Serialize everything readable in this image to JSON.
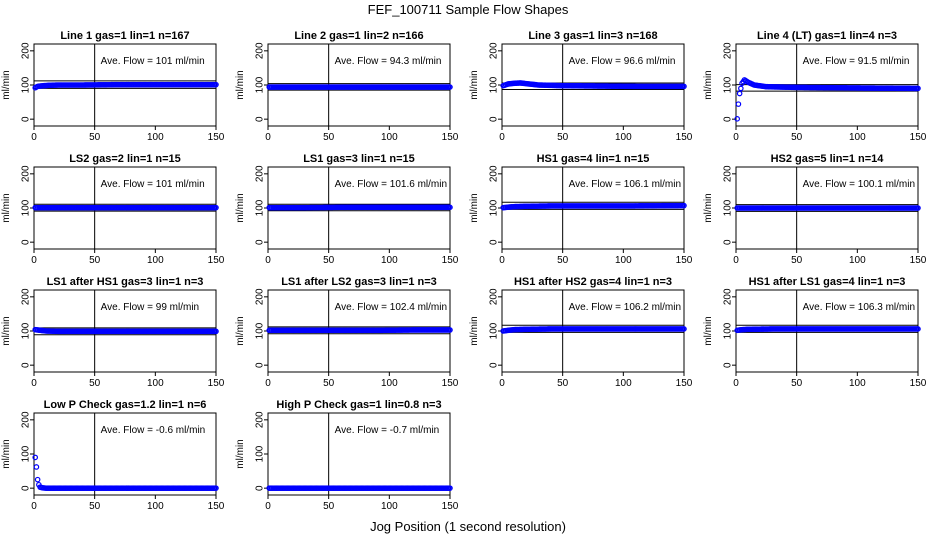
{
  "figure": {
    "title": "FEF_100711  Sample Flow Shapes",
    "xlabel": "Jog Position (1 second resolution)"
  },
  "chart_data": [
    {
      "type": "scatter",
      "title": "Line 1 gas=1 lin=1 n=167",
      "ylabel": "ml/min",
      "annotation": "Ave. Flow =  101  ml/min",
      "mean": 101,
      "hlines": [
        90,
        112
      ],
      "vline": 50,
      "xlim": [
        0,
        150
      ],
      "ylim": [
        -20,
        220
      ],
      "xticks": [
        0,
        50,
        100,
        150
      ],
      "yticks": [
        0,
        100,
        200
      ],
      "series": [
        {
          "name": "",
          "color": "#0000ff",
          "points": [
            [
              1,
              92
            ],
            [
              3,
              96
            ],
            [
              5,
              97
            ],
            [
              8,
              98
            ],
            [
              12,
              99
            ],
            [
              20,
              100
            ],
            [
              40,
              100
            ],
            [
              70,
              101
            ],
            [
              100,
              101
            ],
            [
              130,
              101
            ],
            [
              150,
              101
            ]
          ]
        }
      ]
    },
    {
      "type": "scatter",
      "title": "Line 2 gas=1 lin=2 n=166",
      "ylabel": "ml/min",
      "annotation": "Ave. Flow =  94.3  ml/min",
      "mean": 94.3,
      "hlines": [
        85,
        104
      ],
      "vline": 50,
      "xlim": [
        0,
        150
      ],
      "ylim": [
        -20,
        220
      ],
      "xticks": [
        0,
        50,
        100,
        150
      ],
      "yticks": [
        0,
        100,
        200
      ],
      "series": [
        {
          "name": "",
          "color": "#0000ff",
          "points": [
            [
              1,
              94
            ],
            [
              20,
              94
            ],
            [
              50,
              94
            ],
            [
              80,
              94
            ],
            [
              110,
              94
            ],
            [
              150,
              94
            ]
          ]
        }
      ]
    },
    {
      "type": "scatter",
      "title": "Line 3 gas=1 lin=3 n=168",
      "ylabel": "ml/min",
      "annotation": "Ave. Flow =  96.6  ml/min",
      "mean": 96.6,
      "hlines": [
        87,
        106
      ],
      "vline": 50,
      "xlim": [
        0,
        150
      ],
      "ylim": [
        -20,
        220
      ],
      "xticks": [
        0,
        50,
        100,
        150
      ],
      "yticks": [
        0,
        100,
        200
      ],
      "series": [
        {
          "name": "",
          "color": "#0000ff",
          "points": [
            [
              1,
              98
            ],
            [
              5,
              103
            ],
            [
              10,
              105
            ],
            [
              15,
              106
            ],
            [
              20,
              104
            ],
            [
              30,
              100
            ],
            [
              50,
              98
            ],
            [
              80,
              97
            ],
            [
              110,
              96
            ],
            [
              150,
              96
            ]
          ]
        }
      ]
    },
    {
      "type": "scatter",
      "title": "Line 4 (LT) gas=1 lin=4 n=3",
      "ylabel": "ml/min",
      "annotation": "Ave. Flow =  91.5  ml/min",
      "mean": 91.5,
      "hlines": [
        82,
        101
      ],
      "vline": 50,
      "xlim": [
        0,
        150
      ],
      "ylim": [
        -20,
        220
      ],
      "xticks": [
        0,
        50,
        100,
        150
      ],
      "yticks": [
        0,
        100,
        200
      ],
      "series": [
        {
          "name": "",
          "color": "#0000ff",
          "points": [
            [
              1,
              1
            ],
            [
              2,
              44
            ],
            [
              3,
              75
            ],
            [
              5,
              105
            ],
            [
              7,
              115
            ],
            [
              10,
              108
            ],
            [
              15,
              100
            ],
            [
              25,
              95
            ],
            [
              50,
              93
            ],
            [
              80,
              92
            ],
            [
              110,
              91
            ],
            [
              150,
              90
            ]
          ]
        }
      ]
    },
    {
      "type": "scatter",
      "title": "LS2 gas=2 lin=1 n=15",
      "ylabel": "ml/min",
      "annotation": "Ave. Flow =  101  ml/min",
      "mean": 101,
      "hlines": [
        91,
        111
      ],
      "vline": 50,
      "xlim": [
        0,
        150
      ],
      "ylim": [
        -20,
        220
      ],
      "xticks": [
        0,
        50,
        100,
        150
      ],
      "yticks": [
        0,
        100,
        200
      ],
      "series": [
        {
          "name": "",
          "color": "#0000ff",
          "points": [
            [
              1,
              101
            ],
            [
              30,
              101
            ],
            [
              60,
              101
            ],
            [
              90,
              101
            ],
            [
              120,
              101
            ],
            [
              150,
              101
            ]
          ]
        }
      ]
    },
    {
      "type": "scatter",
      "title": "LS1 gas=3 lin=1 n=15",
      "ylabel": "ml/min",
      "annotation": "Ave. Flow =  101.6  ml/min",
      "mean": 101.6,
      "hlines": [
        92,
        111
      ],
      "vline": 50,
      "xlim": [
        0,
        150
      ],
      "ylim": [
        -20,
        220
      ],
      "xticks": [
        0,
        50,
        100,
        150
      ],
      "yticks": [
        0,
        100,
        200
      ],
      "series": [
        {
          "name": "",
          "color": "#0000ff",
          "points": [
            [
              1,
              101
            ],
            [
              30,
              101
            ],
            [
              60,
              102
            ],
            [
              90,
              102
            ],
            [
              120,
              102
            ],
            [
              150,
              102
            ]
          ]
        }
      ]
    },
    {
      "type": "scatter",
      "title": "HS1 gas=4 lin=1 n=15",
      "ylabel": "ml/min",
      "annotation": "Ave. Flow =  106.1  ml/min",
      "mean": 106.1,
      "hlines": [
        96,
        117
      ],
      "vline": 50,
      "xlim": [
        0,
        150
      ],
      "ylim": [
        -20,
        220
      ],
      "xticks": [
        0,
        50,
        100,
        150
      ],
      "yticks": [
        0,
        100,
        200
      ],
      "series": [
        {
          "name": "",
          "color": "#0000ff",
          "points": [
            [
              1,
              101
            ],
            [
              10,
              104
            ],
            [
              20,
              105
            ],
            [
              40,
              106
            ],
            [
              70,
              106
            ],
            [
              100,
              106
            ],
            [
              150,
              107
            ]
          ]
        }
      ]
    },
    {
      "type": "scatter",
      "title": "HS2 gas=5 lin=1 n=14",
      "ylabel": "ml/min",
      "annotation": "Ave. Flow =  100.1  ml/min",
      "mean": 100.1,
      "hlines": [
        90,
        110
      ],
      "vline": 50,
      "xlim": [
        0,
        150
      ],
      "ylim": [
        -20,
        220
      ],
      "xticks": [
        0,
        50,
        100,
        150
      ],
      "yticks": [
        0,
        100,
        200
      ],
      "series": [
        {
          "name": "",
          "color": "#0000ff",
          "points": [
            [
              1,
              100
            ],
            [
              30,
              100
            ],
            [
              60,
              100
            ],
            [
              90,
              100
            ],
            [
              120,
              100
            ],
            [
              150,
              100
            ]
          ]
        }
      ]
    },
    {
      "type": "scatter",
      "title": "LS1 after HS1 gas=3 lin=1 n=3",
      "ylabel": "ml/min",
      "annotation": "Ave. Flow =  99  ml/min",
      "mean": 99,
      "hlines": [
        89,
        109
      ],
      "vline": 50,
      "xlim": [
        0,
        150
      ],
      "ylim": [
        -20,
        220
      ],
      "xticks": [
        0,
        50,
        100,
        150
      ],
      "yticks": [
        0,
        100,
        200
      ],
      "series": [
        {
          "name": "",
          "color": "#0000ff",
          "points": [
            [
              1,
              104
            ],
            [
              5,
              102
            ],
            [
              10,
              100
            ],
            [
              20,
              99
            ],
            [
              40,
              99
            ],
            [
              70,
              99
            ],
            [
              100,
              99
            ],
            [
              150,
              99
            ]
          ]
        }
      ]
    },
    {
      "type": "scatter",
      "title": "LS1 after LS2 gas=3 lin=1 n=3",
      "ylabel": "ml/min",
      "annotation": "Ave. Flow =  102.4  ml/min",
      "mean": 102.4,
      "hlines": [
        92,
        112
      ],
      "vline": 50,
      "xlim": [
        0,
        150
      ],
      "ylim": [
        -20,
        220
      ],
      "xticks": [
        0,
        50,
        100,
        150
      ],
      "yticks": [
        0,
        100,
        200
      ],
      "series": [
        {
          "name": "",
          "color": "#0000ff",
          "points": [
            [
              1,
              102
            ],
            [
              30,
              102
            ],
            [
              60,
              102
            ],
            [
              90,
              102
            ],
            [
              120,
              103
            ],
            [
              150,
              103
            ]
          ]
        }
      ]
    },
    {
      "type": "scatter",
      "title": "HS1 after HS2 gas=4 lin=1 n=3",
      "ylabel": "ml/min",
      "annotation": "Ave. Flow =  106.2  ml/min",
      "mean": 106.2,
      "hlines": [
        96,
        117
      ],
      "vline": 50,
      "xlim": [
        0,
        150
      ],
      "ylim": [
        -20,
        220
      ],
      "xticks": [
        0,
        50,
        100,
        150
      ],
      "yticks": [
        0,
        100,
        200
      ],
      "series": [
        {
          "name": "",
          "color": "#0000ff",
          "points": [
            [
              1,
              100
            ],
            [
              5,
              102
            ],
            [
              10,
              104
            ],
            [
              20,
              105
            ],
            [
              40,
              106
            ],
            [
              70,
              106
            ],
            [
              100,
              106
            ],
            [
              150,
              106
            ]
          ]
        }
      ]
    },
    {
      "type": "scatter",
      "title": "HS1 after LS1 gas=4 lin=1 n=3",
      "ylabel": "ml/min",
      "annotation": "Ave. Flow =  106.3  ml/min",
      "mean": 106.3,
      "hlines": [
        96,
        117
      ],
      "vline": 50,
      "xlim": [
        0,
        150
      ],
      "ylim": [
        -20,
        220
      ],
      "xticks": [
        0,
        50,
        100,
        150
      ],
      "yticks": [
        0,
        100,
        200
      ],
      "series": [
        {
          "name": "",
          "color": "#0000ff",
          "points": [
            [
              1,
              102
            ],
            [
              5,
              104
            ],
            [
              10,
              105
            ],
            [
              30,
              106
            ],
            [
              60,
              106
            ],
            [
              100,
              106
            ],
            [
              150,
              106
            ]
          ]
        }
      ]
    },
    {
      "type": "scatter",
      "title": "Low P Check gas=1.2 lin=1 n=6",
      "ylabel": "ml/min",
      "annotation": "Ave. Flow =  -0.6  ml/min",
      "mean": -0.6,
      "hlines": [],
      "vline": 50,
      "xlim": [
        0,
        150
      ],
      "ylim": [
        -20,
        220
      ],
      "xticks": [
        0,
        50,
        100,
        150
      ],
      "yticks": [
        0,
        100,
        200
      ],
      "series": [
        {
          "name": "",
          "color": "#0000ff",
          "points": [
            [
              1,
              90
            ],
            [
              2,
              62
            ],
            [
              3,
              25
            ],
            [
              4,
              10
            ],
            [
              5,
              3
            ],
            [
              7,
              1
            ],
            [
              10,
              0
            ],
            [
              30,
              0
            ],
            [
              60,
              0
            ],
            [
              90,
              0
            ],
            [
              120,
              0
            ],
            [
              150,
              0
            ]
          ]
        }
      ]
    },
    {
      "type": "scatter",
      "title": "High P Check gas=1 lin=0.8 n=3",
      "ylabel": "ml/min",
      "annotation": "Ave. Flow =  -0.7  ml/min",
      "mean": -0.7,
      "hlines": [],
      "vline": 50,
      "xlim": [
        0,
        150
      ],
      "ylim": [
        -20,
        220
      ],
      "xticks": [
        0,
        50,
        100,
        150
      ],
      "yticks": [
        0,
        100,
        200
      ],
      "series": [
        {
          "name": "",
          "color": "#0000ff",
          "points": [
            [
              1,
              0
            ],
            [
              30,
              0
            ],
            [
              60,
              0
            ],
            [
              90,
              0
            ],
            [
              120,
              0
            ],
            [
              150,
              0
            ]
          ]
        }
      ]
    }
  ]
}
